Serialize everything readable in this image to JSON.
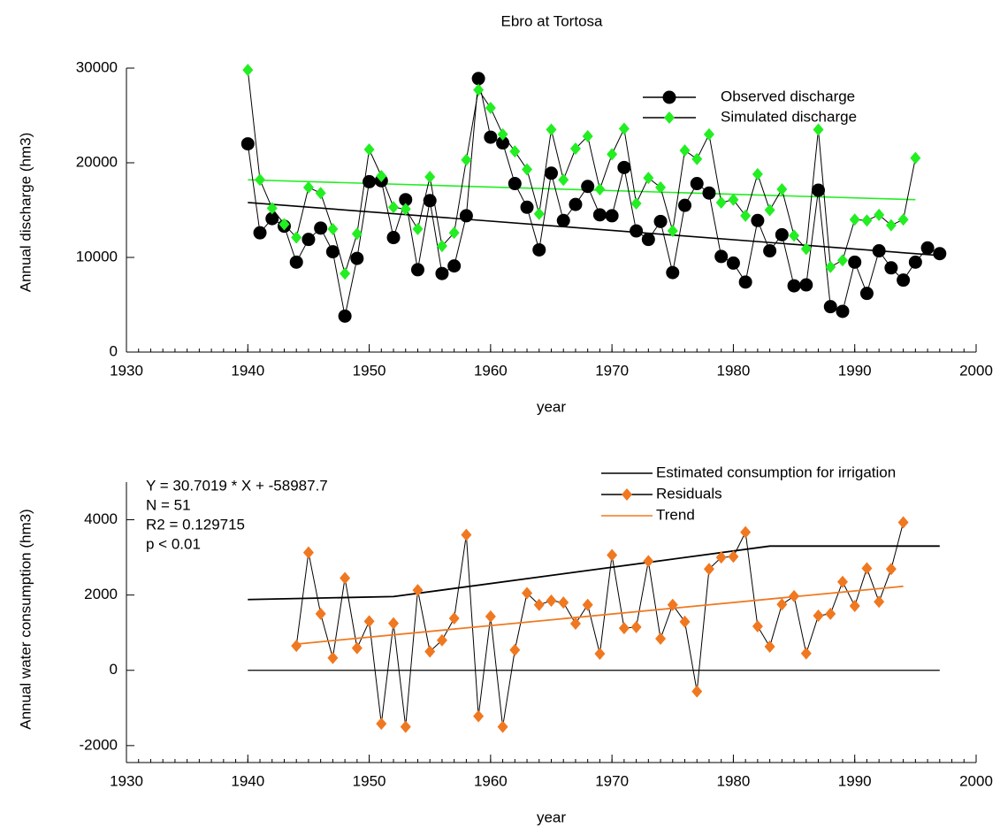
{
  "chart_data": [
    {
      "type": "line",
      "title": "Ebro at Tortosa",
      "xlabel": "year",
      "ylabel": "Annual discharge (hm3)",
      "xlim": [
        1930,
        2000
      ],
      "xticks": [
        1930,
        1940,
        1950,
        1960,
        1970,
        1980,
        1990,
        2000
      ],
      "ylim": [
        0,
        30000
      ],
      "yticks": [
        0,
        10000,
        20000,
        30000
      ],
      "series": [
        {
          "name": "Observed discharge",
          "color": "#000000",
          "marker": "circle",
          "x": [
            1940,
            1941,
            1942,
            1943,
            1944,
            1945,
            1946,
            1947,
            1948,
            1949,
            1950,
            1951,
            1952,
            1953,
            1954,
            1955,
            1956,
            1957,
            1958,
            1959,
            1960,
            1961,
            1962,
            1963,
            1964,
            1965,
            1966,
            1967,
            1968,
            1969,
            1970,
            1971,
            1972,
            1973,
            1974,
            1975,
            1976,
            1977,
            1978,
            1979,
            1980,
            1981,
            1982,
            1983,
            1984,
            1985,
            1986,
            1987,
            1988,
            1989,
            1990,
            1991,
            1992,
            1993,
            1994,
            1995,
            1996,
            1997
          ],
          "values": [
            22000,
            12600,
            14100,
            13300,
            9500,
            11900,
            13100,
            10600,
            3800,
            9900,
            18000,
            18100,
            12100,
            16100,
            8700,
            16000,
            8300,
            9100,
            14400,
            28900,
            22700,
            22100,
            17800,
            15300,
            10800,
            18900,
            13900,
            15600,
            17500,
            14500,
            14400,
            19500,
            12800,
            11900,
            13800,
            8400,
            15500,
            17800,
            16800,
            10100,
            9400,
            7400,
            13900,
            10700,
            12400,
            7000,
            7100,
            17100,
            4800,
            4300,
            9500,
            6200,
            10700,
            8900,
            7600,
            9500,
            11000,
            10400
          ]
        },
        {
          "name": "Simulated discharge",
          "color": "#22ee22",
          "marker": "diamond",
          "x": [
            1940,
            1941,
            1942,
            1943,
            1944,
            1945,
            1946,
            1947,
            1948,
            1949,
            1950,
            1951,
            1952,
            1953,
            1954,
            1955,
            1956,
            1957,
            1958,
            1959,
            1960,
            1961,
            1962,
            1963,
            1964,
            1965,
            1966,
            1967,
            1968,
            1969,
            1970,
            1971,
            1972,
            1973,
            1974,
            1975,
            1976,
            1977,
            1978,
            1979,
            1980,
            1981,
            1982,
            1983,
            1984,
            1985,
            1986,
            1987,
            1988,
            1989,
            1990,
            1991,
            1992,
            1993,
            1994,
            1995
          ],
          "values": [
            29800,
            18200,
            15200,
            13500,
            12100,
            17400,
            16800,
            13000,
            8300,
            12500,
            21400,
            18600,
            15300,
            15100,
            13000,
            18500,
            11200,
            12600,
            20300,
            27700,
            25800,
            23000,
            21200,
            19300,
            14600,
            23500,
            18200,
            21500,
            22800,
            17200,
            20900,
            23600,
            15700,
            18400,
            17400,
            12800,
            21300,
            20400,
            23000,
            15800,
            16100,
            14400,
            18800,
            15000,
            17200,
            12300,
            10900,
            23500,
            9000,
            9700,
            14000,
            13900,
            14500,
            13400,
            14000,
            20500
          ]
        }
      ],
      "trend_lines": [
        {
          "color": "#000000",
          "x": [
            1940,
            1997
          ],
          "values": [
            15800,
            10200
          ]
        },
        {
          "color": "#22ee22",
          "x": [
            1940,
            1995
          ],
          "values": [
            18200,
            16100
          ]
        }
      ]
    },
    {
      "type": "line",
      "xlabel": "year",
      "ylabel": "Annual water consumption (hm3)",
      "xlim": [
        1930,
        2000
      ],
      "xticks": [
        1930,
        1940,
        1950,
        1960,
        1970,
        1980,
        1990,
        2000
      ],
      "ylim": [
        -2450,
        5000
      ],
      "yticks": [
        -2000,
        0,
        2000,
        4000
      ],
      "annotations": [
        "Y = 30.7019 * X + -58987.7",
        "N = 51",
        "R2 = 0.129715",
        "p < 0.01"
      ],
      "series": [
        {
          "name": "Estimated consumption for irrigation",
          "color": "#000000",
          "marker": "none",
          "x": [
            1940,
            1952,
            1983,
            1997
          ],
          "values": [
            1880,
            1960,
            3300,
            3300
          ]
        },
        {
          "name": "Residuals",
          "color": "#f07820",
          "marker": "diamond",
          "x": [
            1944,
            1945,
            1946,
            1947,
            1948,
            1949,
            1950,
            1951,
            1952,
            1953,
            1954,
            1955,
            1956,
            1957,
            1958,
            1959,
            1960,
            1961,
            1962,
            1963,
            1964,
            1965,
            1966,
            1967,
            1968,
            1969,
            1970,
            1971,
            1972,
            1973,
            1974,
            1975,
            1976,
            1977,
            1978,
            1979,
            1980,
            1981,
            1982,
            1983,
            1984,
            1985,
            1986,
            1987,
            1988,
            1989,
            1990,
            1991,
            1992,
            1993,
            1994
          ],
          "values": [
            650,
            3130,
            1500,
            330,
            2450,
            590,
            1300,
            -1420,
            1250,
            -1500,
            2130,
            500,
            800,
            1380,
            3600,
            -1220,
            1430,
            -1500,
            540,
            2050,
            1740,
            1850,
            1800,
            1240,
            1740,
            440,
            3060,
            1120,
            1150,
            2900,
            840,
            1740,
            1290,
            -560,
            2690,
            3000,
            3020,
            3670,
            1170,
            630,
            1750,
            1970,
            450,
            1450,
            1500,
            2350,
            1710,
            2710,
            1820,
            2690,
            3930
          ]
        },
        {
          "name": "Trend",
          "color": "#f07820",
          "marker": "none",
          "x": [
            1944,
            1994
          ],
          "values": [
            697,
            2232
          ]
        }
      ]
    }
  ]
}
